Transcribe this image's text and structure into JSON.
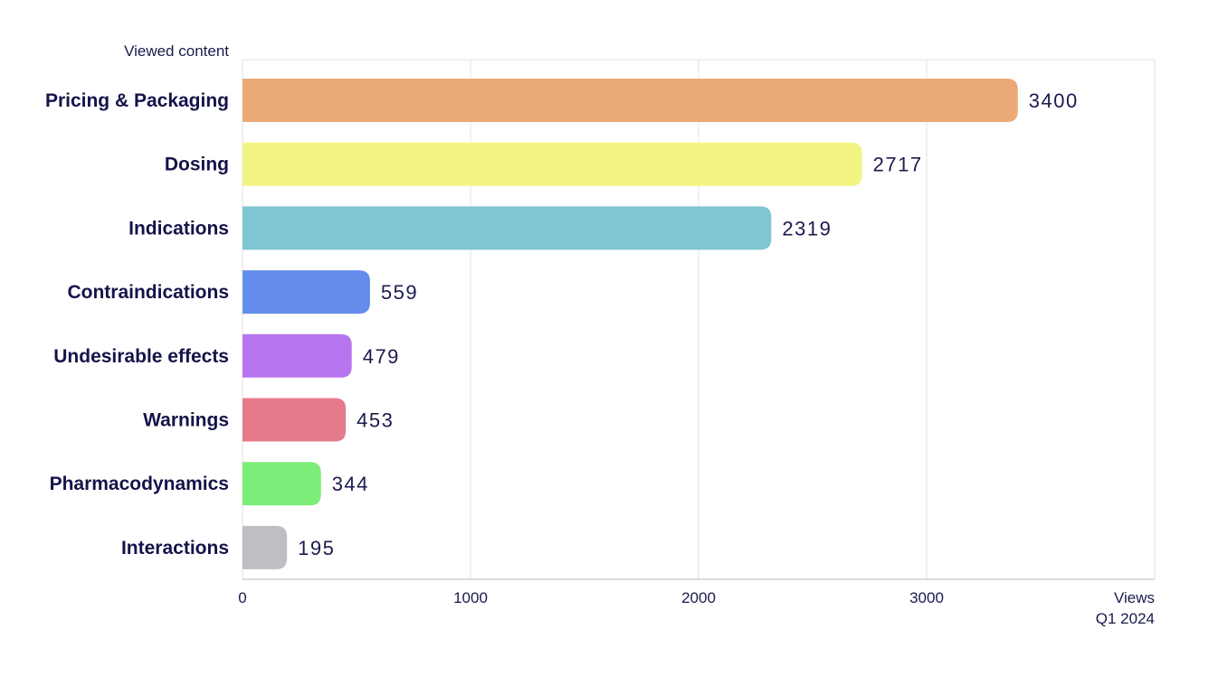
{
  "chart_data": {
    "type": "bar",
    "orientation": "horizontal",
    "ylabel": "Viewed content",
    "xlabel": "Views",
    "xlabel_sub": "Q1 2024",
    "xlim": [
      0,
      4000
    ],
    "xticks": [
      0,
      1000,
      2000,
      3000
    ],
    "grid": true,
    "categories": [
      "Pricing & Packaging",
      "Dosing",
      "Indications",
      "Contraindications",
      "Undesirable effects",
      "Warnings",
      "Pharmacodynamics",
      "Interactions"
    ],
    "values": [
      3400,
      2717,
      2319,
      559,
      479,
      453,
      344,
      195
    ],
    "colors": [
      "#eba978",
      "#f3f582",
      "#7ec6d1",
      "#648cec",
      "#b776ef",
      "#e57b8a",
      "#7ced79",
      "#bebec3"
    ]
  }
}
